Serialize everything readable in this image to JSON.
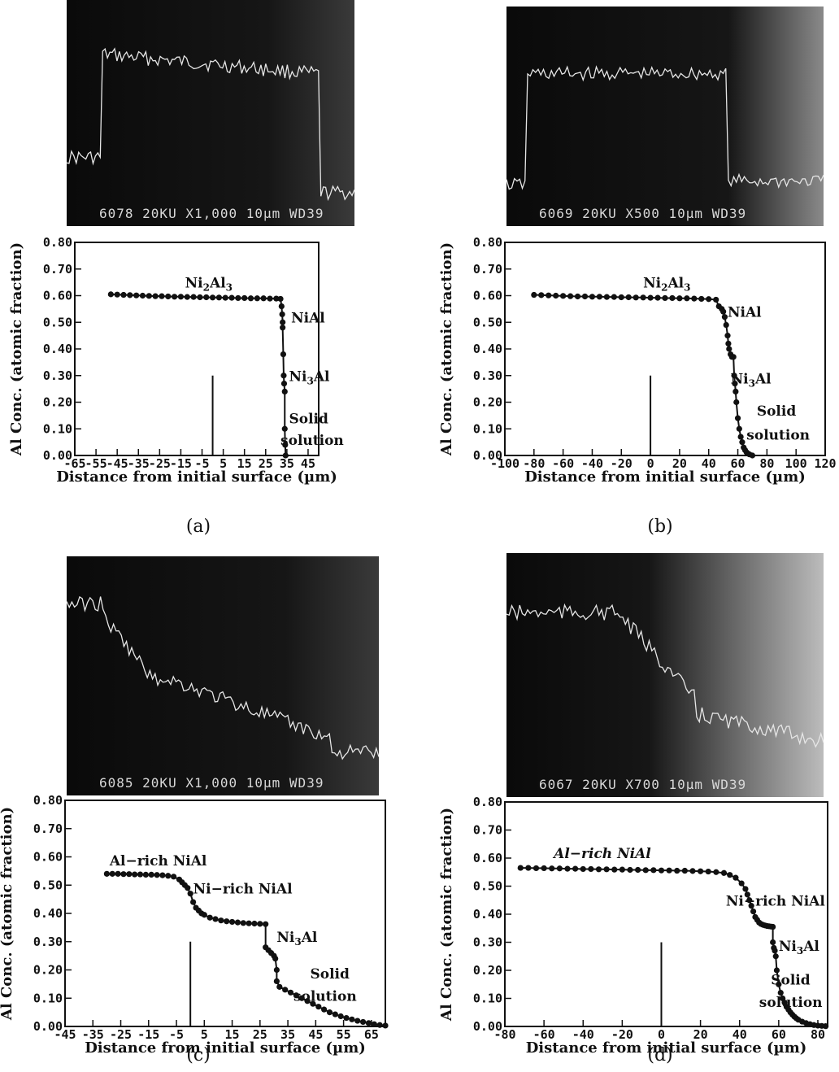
{
  "chart_data": [
    {
      "panel": "(a)",
      "type": "line",
      "sem_label": "6078  20KU   X1,000  10µm WD39",
      "ylabel": "Al Conc. (atomic fraction)",
      "xlabel": "Distance from initial surface (µm)",
      "xlim": [
        -65,
        50
      ],
      "ylim": [
        0,
        0.8
      ],
      "xtick_labels": [
        "-65",
        "-55",
        "-45",
        "-35",
        "-25",
        "-15",
        "-5",
        "5",
        "15",
        "25",
        "35",
        "45"
      ],
      "ytick_labels": [
        "0.00",
        "0.10",
        "0.20",
        "0.30",
        "0.40",
        "0.50",
        "0.60",
        "0.70",
        "0.80"
      ],
      "annotations": [
        {
          "text": "Ni",
          "sub": "2",
          "rest": "Al",
          "sub2": "3",
          "x": -13,
          "y": 0.63
        },
        {
          "text": "NiAl",
          "x": 37,
          "y": 0.5
        },
        {
          "text": "Ni",
          "sub": "3",
          "rest": "Al",
          "x": 36,
          "y": 0.28
        },
        {
          "text": "Solid",
          "x": 36,
          "y": 0.12
        },
        {
          "text": "solution",
          "x": 32,
          "y": 0.04
        }
      ],
      "series": [
        {
          "x": [
            -48,
            -45,
            -42,
            -39,
            -36,
            -33,
            -30,
            -27,
            -24,
            -21,
            -18,
            -15,
            -12,
            -9,
            -6,
            -3,
            0,
            3,
            6,
            9,
            12,
            15,
            18,
            21,
            24,
            27,
            30,
            32,
            32.5,
            32.8,
            33,
            33,
            33.3,
            33.5,
            33.7,
            34,
            34,
            34.2,
            34.4
          ],
          "y": [
            0.605,
            0.604,
            0.603,
            0.602,
            0.601,
            0.6,
            0.599,
            0.598,
            0.598,
            0.597,
            0.596,
            0.596,
            0.595,
            0.595,
            0.594,
            0.594,
            0.593,
            0.593,
            0.592,
            0.592,
            0.591,
            0.591,
            0.59,
            0.59,
            0.59,
            0.589,
            0.589,
            0.588,
            0.56,
            0.53,
            0.5,
            0.48,
            0.38,
            0.3,
            0.27,
            0.24,
            0.1,
            0.04,
            0.0
          ]
        }
      ],
      "initial_surface_marker": {
        "x": 0,
        "y": 0.3
      }
    },
    {
      "panel": "(b)",
      "type": "line",
      "sem_label": "6069  20KU     X500  10µm WD39",
      "ylabel": "Al Conc. (atomic fraction)",
      "xlabel": "Distance from initial surface (µm)",
      "xlim": [
        -100,
        120
      ],
      "ylim": [
        0,
        0.8
      ],
      "xtick_labels": [
        "-100",
        "-80",
        "-60",
        "-40",
        "-20",
        "0",
        "20",
        "40",
        "60",
        "80",
        "100",
        "120"
      ],
      "ytick_labels": [
        "0.00",
        "0.10",
        "0.20",
        "0.30",
        "0.40",
        "0.50",
        "0.60",
        "0.70",
        "0.80"
      ],
      "annotations": [
        {
          "text": "Ni",
          "sub": "2",
          "rest": "Al",
          "sub2": "3",
          "x": -5,
          "y": 0.63
        },
        {
          "text": "NiAl",
          "x": 53,
          "y": 0.52
        },
        {
          "text": "Ni",
          "sub": "3",
          "rest": "Al",
          "x": 55,
          "y": 0.27
        },
        {
          "text": "Solid",
          "x": 73,
          "y": 0.15
        },
        {
          "text": "solution",
          "x": 66,
          "y": 0.06
        }
      ],
      "series": [
        {
          "x": [
            -80,
            -75,
            -70,
            -65,
            -60,
            -55,
            -50,
            -45,
            -40,
            -35,
            -30,
            -25,
            -20,
            -15,
            -10,
            -5,
            0,
            5,
            10,
            15,
            20,
            25,
            30,
            35,
            40,
            45,
            47,
            49,
            50,
            51,
            52,
            53,
            53.5,
            54,
            55,
            56,
            57,
            57.5,
            58,
            58.5,
            59,
            60,
            61,
            62,
            63,
            64,
            65,
            66,
            67,
            68,
            70
          ],
          "y": [
            0.603,
            0.602,
            0.601,
            0.6,
            0.599,
            0.598,
            0.597,
            0.597,
            0.596,
            0.596,
            0.595,
            0.595,
            0.594,
            0.594,
            0.593,
            0.593,
            0.592,
            0.592,
            0.591,
            0.591,
            0.59,
            0.59,
            0.589,
            0.588,
            0.587,
            0.585,
            0.56,
            0.55,
            0.54,
            0.52,
            0.49,
            0.45,
            0.42,
            0.4,
            0.38,
            0.37,
            0.37,
            0.3,
            0.27,
            0.24,
            0.2,
            0.14,
            0.1,
            0.07,
            0.05,
            0.03,
            0.02,
            0.012,
            0.007,
            0.004,
            0.0
          ]
        }
      ],
      "initial_surface_marker": {
        "x": 0,
        "y": 0.3
      }
    },
    {
      "panel": "(c)",
      "type": "line",
      "sem_label": "6085  20KU  X1,000  10µm WD39",
      "ylabel": "Al Conc. (atomic fraction)",
      "xlabel": "Distance from initial surface (µm)",
      "xlim": [
        -45,
        70
      ],
      "ylim": [
        0,
        0.8
      ],
      "xtick_labels": [
        "-45",
        "-35",
        "-25",
        "-15",
        "-5",
        "5",
        "15",
        "25",
        "35",
        "45",
        "55",
        "65"
      ],
      "ytick_labels": [
        "0.00",
        "0.10",
        "0.20",
        "0.30",
        "0.40",
        "0.50",
        "0.60",
        "0.70",
        "0.80"
      ],
      "annotations": [
        {
          "text": "Al−rich  NiAl",
          "x": -29,
          "y": 0.57
        },
        {
          "text": "Ni−rich  NiAl",
          "x": 1,
          "y": 0.47
        },
        {
          "text": "Ni",
          "sub": "3",
          "rest": "Al",
          "x": 31,
          "y": 0.3
        },
        {
          "text": "Solid",
          "x": 43,
          "y": 0.17
        },
        {
          "text": "solution",
          "x": 37,
          "y": 0.09
        }
      ],
      "series": [
        {
          "x": [
            -30,
            -28,
            -26,
            -24,
            -22,
            -20,
            -18,
            -16,
            -14,
            -12,
            -10,
            -8,
            -6,
            -4,
            -3,
            -2,
            -1,
            0,
            1,
            2,
            3,
            4,
            5,
            7,
            9,
            11,
            13,
            15,
            17,
            19,
            21,
            23,
            25,
            27,
            27,
            28,
            29,
            30,
            30.5,
            31,
            31,
            32,
            34,
            36,
            38,
            40,
            42,
            44,
            46,
            48,
            50,
            52,
            54,
            56,
            58,
            60,
            62,
            64,
            66,
            68,
            70
          ],
          "y": [
            0.54,
            0.54,
            0.54,
            0.539,
            0.539,
            0.538,
            0.538,
            0.537,
            0.537,
            0.536,
            0.535,
            0.533,
            0.53,
            0.52,
            0.51,
            0.5,
            0.49,
            0.47,
            0.44,
            0.42,
            0.41,
            0.4,
            0.395,
            0.385,
            0.38,
            0.375,
            0.372,
            0.37,
            0.368,
            0.366,
            0.365,
            0.364,
            0.363,
            0.362,
            0.28,
            0.27,
            0.26,
            0.25,
            0.24,
            0.2,
            0.16,
            0.14,
            0.13,
            0.12,
            0.11,
            0.1,
            0.09,
            0.08,
            0.07,
            0.06,
            0.05,
            0.043,
            0.036,
            0.03,
            0.025,
            0.02,
            0.016,
            0.012,
            0.008,
            0.005,
            0.003
          ]
        }
      ],
      "initial_surface_marker": {
        "x": 0,
        "y": 0.3
      }
    },
    {
      "panel": "(d)",
      "type": "line",
      "sem_label": "6067  20KU     X700  10µm WD39",
      "ylabel": "Al Conc. (atomic fraction)",
      "xlabel": "Distance from initial surface (µm)",
      "xlim": [
        -80,
        85
      ],
      "ylim": [
        0,
        0.8
      ],
      "xtick_labels": [
        "-80",
        "-60",
        "-40",
        "-20",
        "0",
        "20",
        "40",
        "60",
        "80"
      ],
      "ytick_labels": [
        "0.00",
        "0.10",
        "0.20",
        "0.30",
        "0.40",
        "0.50",
        "0.60",
        "0.70",
        "0.80"
      ],
      "annotations": [
        {
          "text": "Al−rich  NiAl",
          "x": -55,
          "y": 0.6,
          "italic": true
        },
        {
          "text": "Ni−rich  NiAl",
          "x": 33,
          "y": 0.43
        },
        {
          "text": "Ni",
          "sub": "3",
          "rest": "Al",
          "x": 60,
          "y": 0.27
        },
        {
          "text": "Solid",
          "x": 56,
          "y": 0.15
        },
        {
          "text": "solution",
          "x": 50,
          "y": 0.07
        }
      ],
      "series": [
        {
          "x": [
            -72,
            -68,
            -64,
            -60,
            -56,
            -52,
            -48,
            -44,
            -40,
            -36,
            -32,
            -28,
            -24,
            -20,
            -16,
            -12,
            -8,
            -4,
            0,
            4,
            8,
            12,
            16,
            20,
            24,
            28,
            32,
            35,
            38,
            41,
            43,
            44,
            45,
            46,
            47,
            48,
            49,
            50,
            51,
            52,
            53,
            54,
            55,
            56,
            57,
            57,
            57.5,
            58,
            58.5,
            59,
            60,
            61,
            62,
            63,
            64,
            65,
            66,
            67,
            68,
            69,
            70,
            72,
            74,
            76,
            78,
            80,
            82,
            84
          ],
          "y": [
            0.565,
            0.565,
            0.564,
            0.564,
            0.563,
            0.563,
            0.562,
            0.562,
            0.561,
            0.561,
            0.56,
            0.56,
            0.559,
            0.559,
            0.558,
            0.558,
            0.557,
            0.557,
            0.556,
            0.556,
            0.555,
            0.555,
            0.554,
            0.553,
            0.552,
            0.55,
            0.547,
            0.54,
            0.53,
            0.51,
            0.49,
            0.47,
            0.45,
            0.43,
            0.41,
            0.39,
            0.38,
            0.37,
            0.365,
            0.362,
            0.36,
            0.358,
            0.357,
            0.356,
            0.355,
            0.3,
            0.28,
            0.27,
            0.25,
            0.2,
            0.15,
            0.12,
            0.1,
            0.085,
            0.07,
            0.06,
            0.05,
            0.042,
            0.035,
            0.029,
            0.024,
            0.017,
            0.012,
            0.008,
            0.005,
            0.003,
            0.002,
            0.001
          ]
        }
      ],
      "initial_surface_marker": {
        "x": 0,
        "y": 0.3
      }
    }
  ]
}
